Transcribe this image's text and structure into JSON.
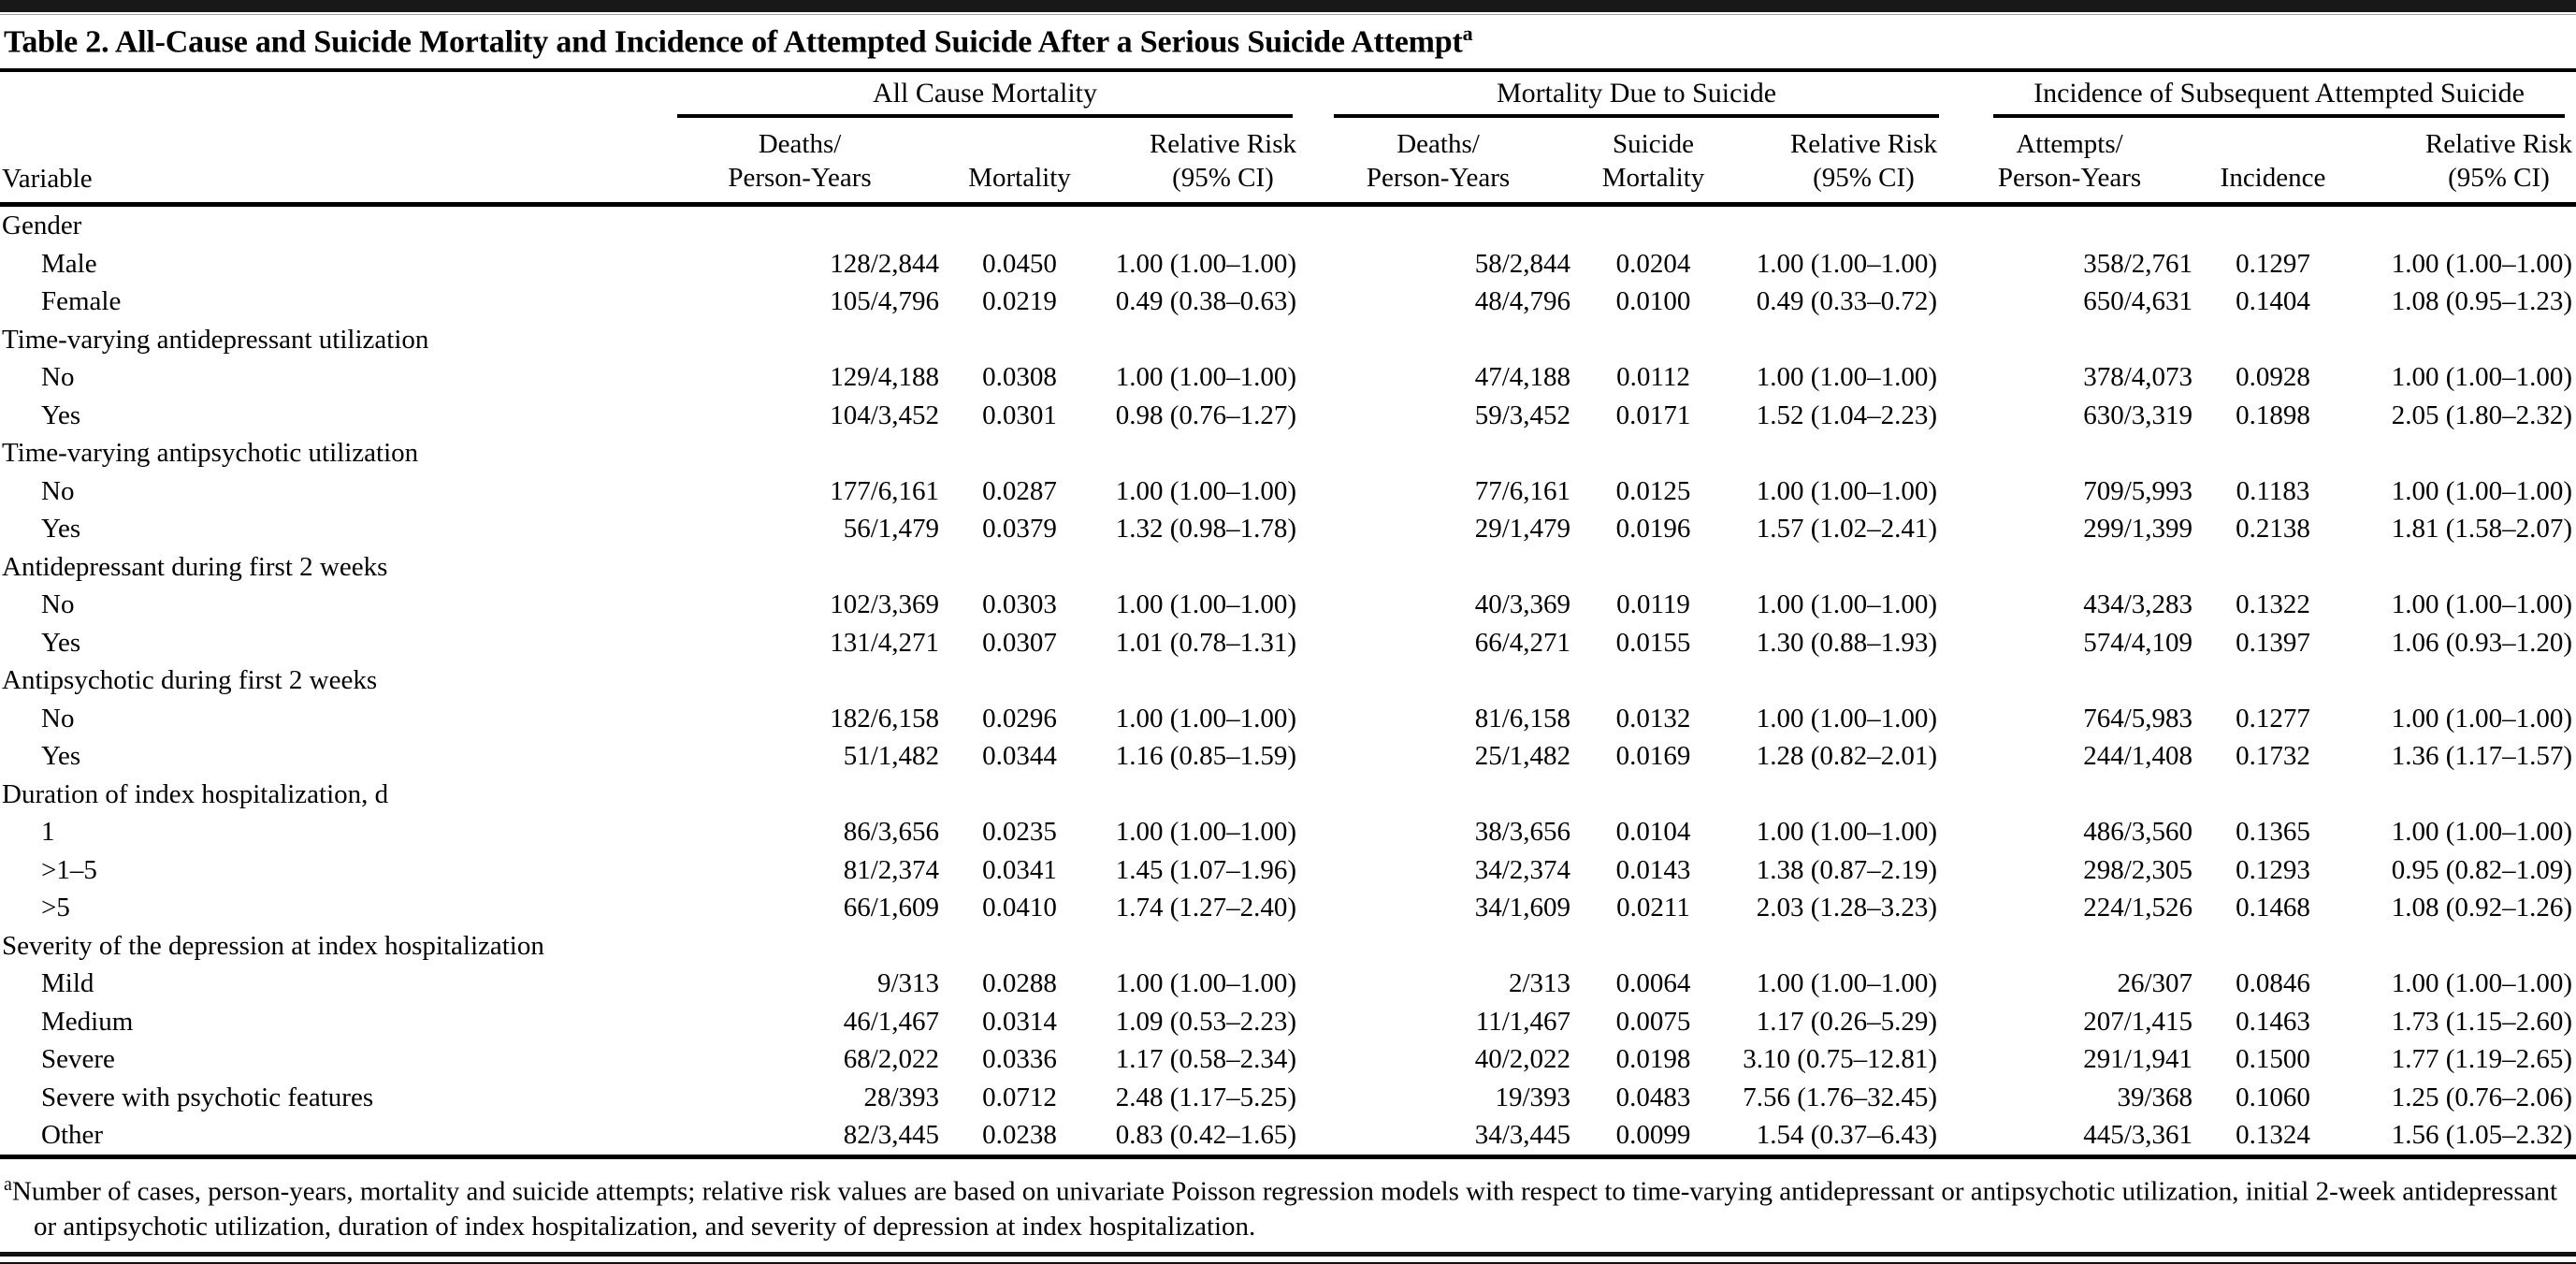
{
  "title": {
    "text": "Table 2. All-Cause and Suicide Mortality and Incidence of Attempted Suicide After a Serious Suicide Attempt",
    "superscript": "a"
  },
  "header": {
    "variable_label": "Variable",
    "groups": [
      {
        "label": "All Cause Mortality",
        "columns": [
          {
            "line1": "Deaths/",
            "line2": "Person-Years"
          },
          {
            "line1": "",
            "line2": "Mortality"
          },
          {
            "line1": "Relative Risk",
            "line2": "(95% CI)"
          }
        ]
      },
      {
        "label": "Mortality Due to Suicide",
        "columns": [
          {
            "line1": "Deaths/",
            "line2": "Person-Years"
          },
          {
            "line1": "Suicide",
            "line2": "Mortality"
          },
          {
            "line1": "Relative Risk",
            "line2": "(95% CI)"
          }
        ]
      },
      {
        "label": "Incidence of Subsequent Attempted Suicide",
        "columns": [
          {
            "line1": "Attempts/",
            "line2": "Person-Years"
          },
          {
            "line1": "",
            "line2": "Incidence"
          },
          {
            "line1": "Relative Risk",
            "line2": "(95% CI)"
          }
        ]
      }
    ]
  },
  "sections": [
    {
      "label": "Gender",
      "rows": [
        {
          "label": "Male",
          "cells": [
            "128/2,844",
            "0.0450",
            "1.00 (1.00–1.00)",
            "58/2,844",
            "0.0204",
            "1.00 (1.00–1.00)",
            "358/2,761",
            "0.1297",
            "1.00 (1.00–1.00)"
          ]
        },
        {
          "label": "Female",
          "cells": [
            "105/4,796",
            "0.0219",
            "0.49 (0.38–0.63)",
            "48/4,796",
            "0.0100",
            "0.49 (0.33–0.72)",
            "650/4,631",
            "0.1404",
            "1.08 (0.95–1.23)"
          ]
        }
      ]
    },
    {
      "label": "Time-varying antidepressant utilization",
      "rows": [
        {
          "label": "No",
          "cells": [
            "129/4,188",
            "0.0308",
            "1.00 (1.00–1.00)",
            "47/4,188",
            "0.0112",
            "1.00 (1.00–1.00)",
            "378/4,073",
            "0.0928",
            "1.00 (1.00–1.00)"
          ]
        },
        {
          "label": "Yes",
          "cells": [
            "104/3,452",
            "0.0301",
            "0.98 (0.76–1.27)",
            "59/3,452",
            "0.0171",
            "1.52 (1.04–2.23)",
            "630/3,319",
            "0.1898",
            "2.05 (1.80–2.32)"
          ]
        }
      ]
    },
    {
      "label": "Time-varying antipsychotic utilization",
      "rows": [
        {
          "label": "No",
          "cells": [
            "177/6,161",
            "0.0287",
            "1.00 (1.00–1.00)",
            "77/6,161",
            "0.0125",
            "1.00 (1.00–1.00)",
            "709/5,993",
            "0.1183",
            "1.00 (1.00–1.00)"
          ]
        },
        {
          "label": "Yes",
          "cells": [
            "56/1,479",
            "0.0379",
            "1.32 (0.98–1.78)",
            "29/1,479",
            "0.0196",
            "1.57 (1.02–2.41)",
            "299/1,399",
            "0.2138",
            "1.81 (1.58–2.07)"
          ]
        }
      ]
    },
    {
      "label": "Antidepressant during first 2 weeks",
      "rows": [
        {
          "label": "No",
          "cells": [
            "102/3,369",
            "0.0303",
            "1.00 (1.00–1.00)",
            "40/3,369",
            "0.0119",
            "1.00 (1.00–1.00)",
            "434/3,283",
            "0.1322",
            "1.00 (1.00–1.00)"
          ]
        },
        {
          "label": "Yes",
          "cells": [
            "131/4,271",
            "0.0307",
            "1.01 (0.78–1.31)",
            "66/4,271",
            "0.0155",
            "1.30 (0.88–1.93)",
            "574/4,109",
            "0.1397",
            "1.06 (0.93–1.20)"
          ]
        }
      ]
    },
    {
      "label": "Antipsychotic during first 2 weeks",
      "rows": [
        {
          "label": "No",
          "cells": [
            "182/6,158",
            "0.0296",
            "1.00 (1.00–1.00)",
            "81/6,158",
            "0.0132",
            "1.00 (1.00–1.00)",
            "764/5,983",
            "0.1277",
            "1.00 (1.00–1.00)"
          ]
        },
        {
          "label": "Yes",
          "cells": [
            "51/1,482",
            "0.0344",
            "1.16 (0.85–1.59)",
            "25/1,482",
            "0.0169",
            "1.28 (0.82–2.01)",
            "244/1,408",
            "0.1732",
            "1.36 (1.17–1.57)"
          ]
        }
      ]
    },
    {
      "label": "Duration of index hospitalization, d",
      "rows": [
        {
          "label": "1",
          "cells": [
            "86/3,656",
            "0.0235",
            "1.00 (1.00–1.00)",
            "38/3,656",
            "0.0104",
            "1.00 (1.00–1.00)",
            "486/3,560",
            "0.1365",
            "1.00 (1.00–1.00)"
          ]
        },
        {
          "label": ">1–5",
          "cells": [
            "81/2,374",
            "0.0341",
            "1.45 (1.07–1.96)",
            "34/2,374",
            "0.0143",
            "1.38 (0.87–2.19)",
            "298/2,305",
            "0.1293",
            "0.95 (0.82–1.09)"
          ]
        },
        {
          "label": ">5",
          "cells": [
            "66/1,609",
            "0.0410",
            "1.74 (1.27–2.40)",
            "34/1,609",
            "0.0211",
            "2.03 (1.28–3.23)",
            "224/1,526",
            "0.1468",
            "1.08 (0.92–1.26)"
          ]
        }
      ]
    },
    {
      "label": "Severity of the depression at index hospitalization",
      "rows": [
        {
          "label": "Mild",
          "cells": [
            "9/313",
            "0.0288",
            "1.00 (1.00–1.00)",
            "2/313",
            "0.0064",
            "1.00 (1.00–1.00)",
            "26/307",
            "0.0846",
            "1.00 (1.00–1.00)"
          ]
        },
        {
          "label": "Medium",
          "cells": [
            "46/1,467",
            "0.0314",
            "1.09 (0.53–2.23)",
            "11/1,467",
            "0.0075",
            "1.17 (0.26–5.29)",
            "207/1,415",
            "0.1463",
            "1.73 (1.15–2.60)"
          ]
        },
        {
          "label": "Severe",
          "cells": [
            "68/2,022",
            "0.0336",
            "1.17 (0.58–2.34)",
            "40/2,022",
            "0.0198",
            "3.10 (0.75–12.81)",
            "291/1,941",
            "0.1500",
            "1.77 (1.19–2.65)"
          ]
        },
        {
          "label": "Severe with psychotic features",
          "cells": [
            "28/393",
            "0.0712",
            "2.48 (1.17–5.25)",
            "19/393",
            "0.0483",
            "7.56 (1.76–32.45)",
            "39/368",
            "0.1060",
            "1.25 (0.76–2.06)"
          ]
        },
        {
          "label": "Other",
          "cells": [
            "82/3,445",
            "0.0238",
            "0.83 (0.42–1.65)",
            "34/3,445",
            "0.0099",
            "1.54 (0.37–6.43)",
            "445/3,361",
            "0.1324",
            "1.56 (1.05–2.32)"
          ]
        }
      ]
    }
  ],
  "footnote": {
    "marker": "a",
    "text": "Number of cases, person-years, mortality and suicide attempts; relative risk values are based on univariate Poisson regression models with respect to time-varying antidepressant or antipsychotic utilization, initial 2-week antidepressant or antipsychotic utilization, duration of index hospitalization, and severity of depression at index hospitalization."
  }
}
